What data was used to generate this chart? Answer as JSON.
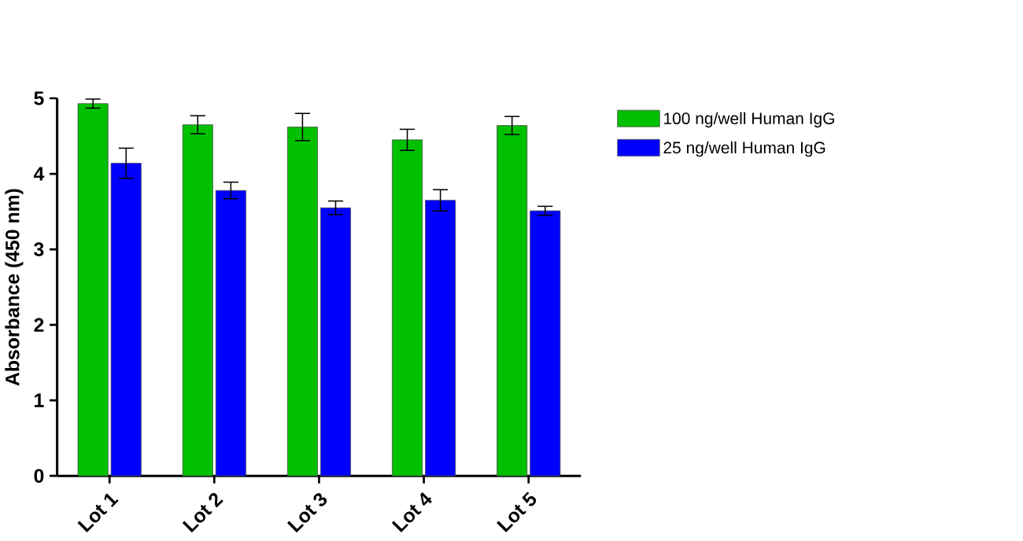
{
  "chart_data": {
    "type": "bar",
    "ylabel": "Absorbance (450 nm)",
    "categories": [
      "Lot 1",
      "Lot 2",
      "Lot 3",
      "Lot 4",
      "Lot 5"
    ],
    "series": [
      {
        "name": "100 ng/well Human IgG",
        "color": "#00c000",
        "values": [
          4.93,
          4.65,
          4.62,
          4.45,
          4.64
        ],
        "errors": [
          0.06,
          0.12,
          0.18,
          0.14,
          0.12
        ]
      },
      {
        "name": "25 ng/well Human IgG",
        "color": "#0000ff",
        "values": [
          4.14,
          3.78,
          3.55,
          3.65,
          3.51
        ],
        "errors": [
          0.2,
          0.11,
          0.09,
          0.14,
          0.06
        ]
      }
    ],
    "ylim": [
      0,
      5
    ],
    "yticks": [
      0,
      1,
      2,
      3,
      4,
      5
    ],
    "legend": "right",
    "grid": false
  }
}
